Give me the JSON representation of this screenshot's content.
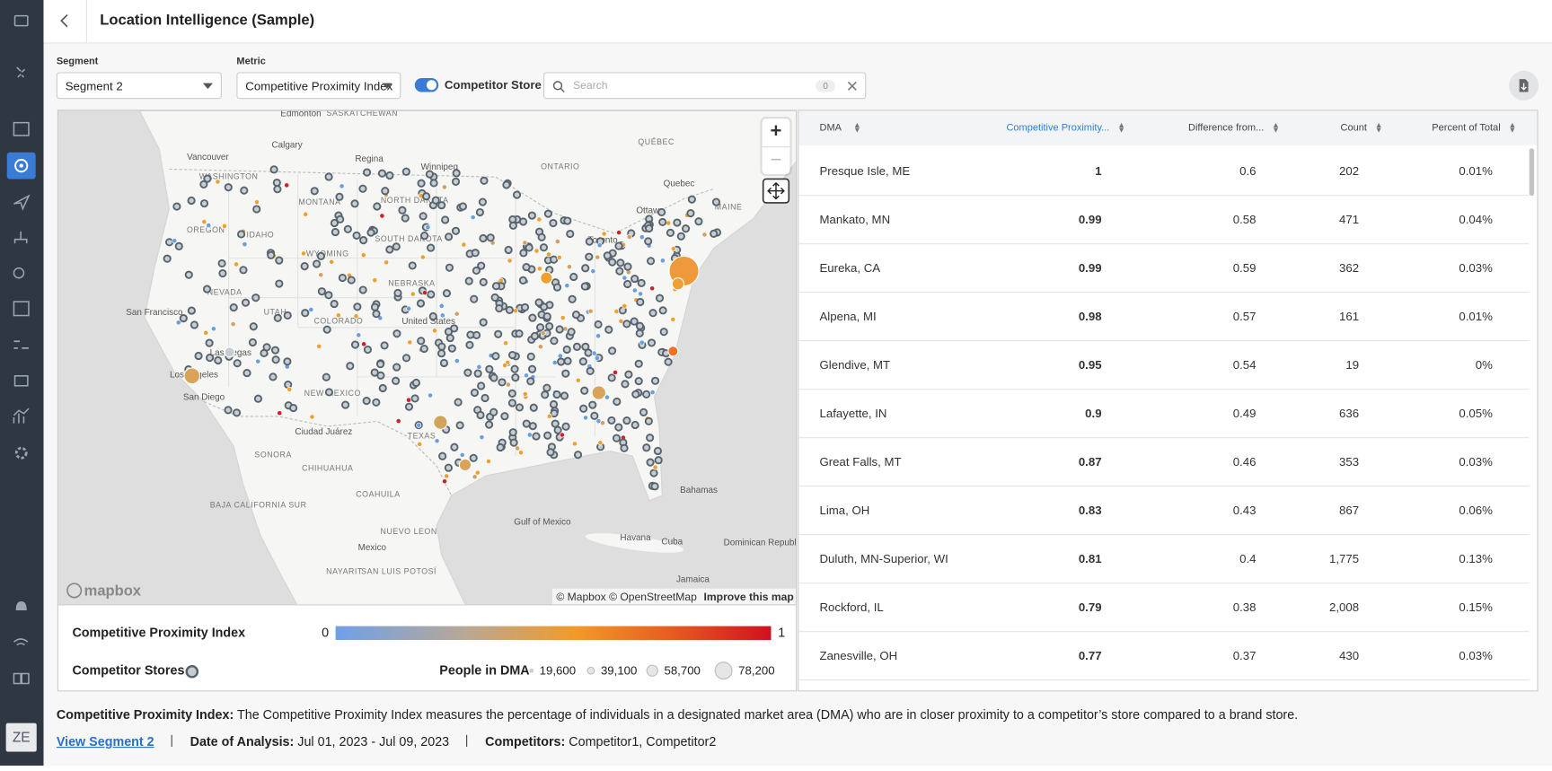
{
  "sidebar": {
    "avatar": "ZE"
  },
  "header": {
    "title": "Location Intelligence (Sample)"
  },
  "filters": {
    "segment_label": "Segment",
    "segment_value": "Segment 2",
    "metric_label": "Metric",
    "metric_value": "Competitive Proximity Index",
    "toggle_label": "Competitor Store",
    "search_placeholder": "Search",
    "search_count": "0"
  },
  "map": {
    "labels": [
      "Edmonton",
      "SASKATCHEWAN",
      "Calgary",
      "Regina",
      "Winnipeg",
      "ONTARIO",
      "QUÉBEC",
      "Vancouver",
      "Quebec",
      "Ottawa",
      "MAINE",
      "Toronto",
      "WASHINGTON",
      "MONTANA",
      "NORTH DAKOTA",
      "OREGON",
      "IDAHO",
      "WYOMING",
      "SOUTH DAKOTA",
      "NEVADA",
      "UTAH",
      "NEBRASKA",
      "San Francisco",
      "United States",
      "COLORADO",
      "Las Vegas",
      "Los Angeles",
      "NEW MEXICO",
      "San Diego",
      "Ciudad Juárez",
      "TEXAS",
      "SONORA",
      "CHIHUAHUA",
      "COAHUILA",
      "Bahamas",
      "Gulf of Mexico",
      "Mexico",
      "Havana",
      "Cuba",
      "NUEVO LEON",
      "SAN LUIS POTOSÍ",
      "NAYARIT",
      "Dominican Republic",
      "Jamaica",
      "BAJA CALIFORNIA SUR"
    ],
    "logo": "mapbox",
    "attribution": "© Mapbox © OpenStreetMap",
    "improve": "Improve this map"
  },
  "legend": {
    "index_title": "Competitive Proximity Index",
    "min": "0",
    "max": "1",
    "stores_label": "Competitor Stores",
    "people_label": "People in DMA",
    "sizes": [
      "19,600",
      "39,100",
      "58,700",
      "78,200"
    ]
  },
  "table": {
    "columns": [
      "DMA",
      "Competitive Proximity...",
      "Difference from...",
      "Count",
      "Percent of Total"
    ],
    "rows": [
      [
        "Presque Isle, ME",
        "1",
        "0.6",
        "202",
        "0.01%"
      ],
      [
        "Mankato, MN",
        "0.99",
        "0.58",
        "471",
        "0.04%"
      ],
      [
        "Eureka, CA",
        "0.99",
        "0.59",
        "362",
        "0.03%"
      ],
      [
        "Alpena, MI",
        "0.98",
        "0.57",
        "161",
        "0.01%"
      ],
      [
        "Glendive, MT",
        "0.95",
        "0.54",
        "19",
        "0%"
      ],
      [
        "Lafayette, IN",
        "0.9",
        "0.49",
        "636",
        "0.05%"
      ],
      [
        "Great Falls, MT",
        "0.87",
        "0.46",
        "353",
        "0.03%"
      ],
      [
        "Lima, OH",
        "0.83",
        "0.43",
        "867",
        "0.06%"
      ],
      [
        "Duluth, MN-Superior, WI",
        "0.81",
        "0.4",
        "1,775",
        "0.13%"
      ],
      [
        "Rockford, IL",
        "0.79",
        "0.38",
        "2,008",
        "0.15%"
      ],
      [
        "Zanesville, OH",
        "0.77",
        "0.37",
        "430",
        "0.03%"
      ]
    ]
  },
  "footer": {
    "metric_name": "Competitive Proximity Index:",
    "description": "The Competitive Proximity Index measures the percentage of individuals in a designated market area (DMA) who are in closer proximity to a competitor’s store compared to a brand store.",
    "link": "View Segment 2",
    "date_label": "Date of Analysis:",
    "date": "Jul 01, 2023 - Jul 09, 2023",
    "competitors_label": "Competitors:",
    "competitors": "Competitor1, Competitor2"
  }
}
